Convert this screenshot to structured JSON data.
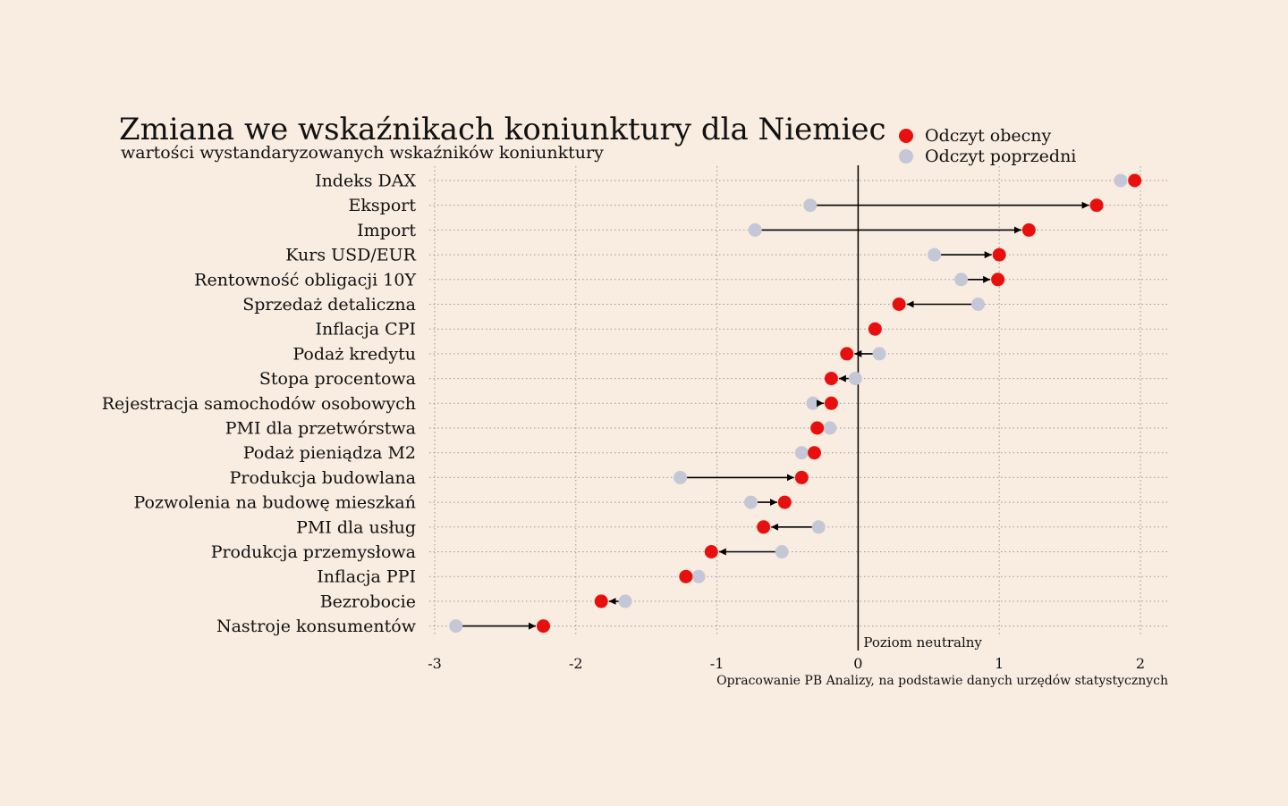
{
  "chart_data": {
    "type": "dumbbell",
    "title": "Zmiana we wskaźnikach koniunktury dla Niemiec",
    "subtitle": "wartości wystandaryzowanych wskaźników koniunktury",
    "source": "Opracowanie PB Analizy, na podstawie danych urzędów statystycznych",
    "zero_line_label": "Poziom neutralny",
    "xlim": [
      -3,
      2
    ],
    "x_ticks": [
      -3,
      -2,
      -1,
      0,
      1,
      2
    ],
    "grid": true,
    "legend_position": "top-right",
    "colors": {
      "current": "#e8100f",
      "previous": "#c4c8d6",
      "arrow": "#000000",
      "background": "#f9ece0"
    },
    "series": [
      {
        "name": "Odczyt obecny",
        "key": "current"
      },
      {
        "name": "Odczyt poprzedni",
        "key": "previous"
      }
    ],
    "categories": [
      "Indeks DAX",
      "Eksport",
      "Import",
      "Kurs USD/EUR",
      "Rentowność obligacji 10Y",
      "Sprzedaż detaliczna",
      "Inflacja CPI",
      "Podaż kredytu",
      "Stopa procentowa",
      "Rejestracja samochodów osobowych",
      "PMI dla przetwórstwa",
      "Podaż pieniądza M2",
      "Produkcja budowlana",
      "Pozwolenia na budowę mieszkań",
      "PMI dla usług",
      "Produkcja przemysłowa",
      "Inflacja PPI",
      "Bezrobocie",
      "Nastroje konsumentów"
    ],
    "current": [
      1.96,
      1.69,
      1.21,
      1.0,
      0.99,
      0.29,
      0.12,
      -0.08,
      -0.19,
      -0.19,
      -0.29,
      -0.31,
      -0.4,
      -0.52,
      -0.67,
      -1.04,
      -1.22,
      -1.82,
      -2.23
    ],
    "previous": [
      1.86,
      -0.34,
      -0.73,
      0.54,
      0.73,
      0.85,
      0.12,
      0.15,
      -0.02,
      -0.32,
      -0.2,
      -0.4,
      -1.26,
      -0.76,
      -0.28,
      -0.54,
      -1.13,
      -1.65,
      -2.85
    ]
  }
}
